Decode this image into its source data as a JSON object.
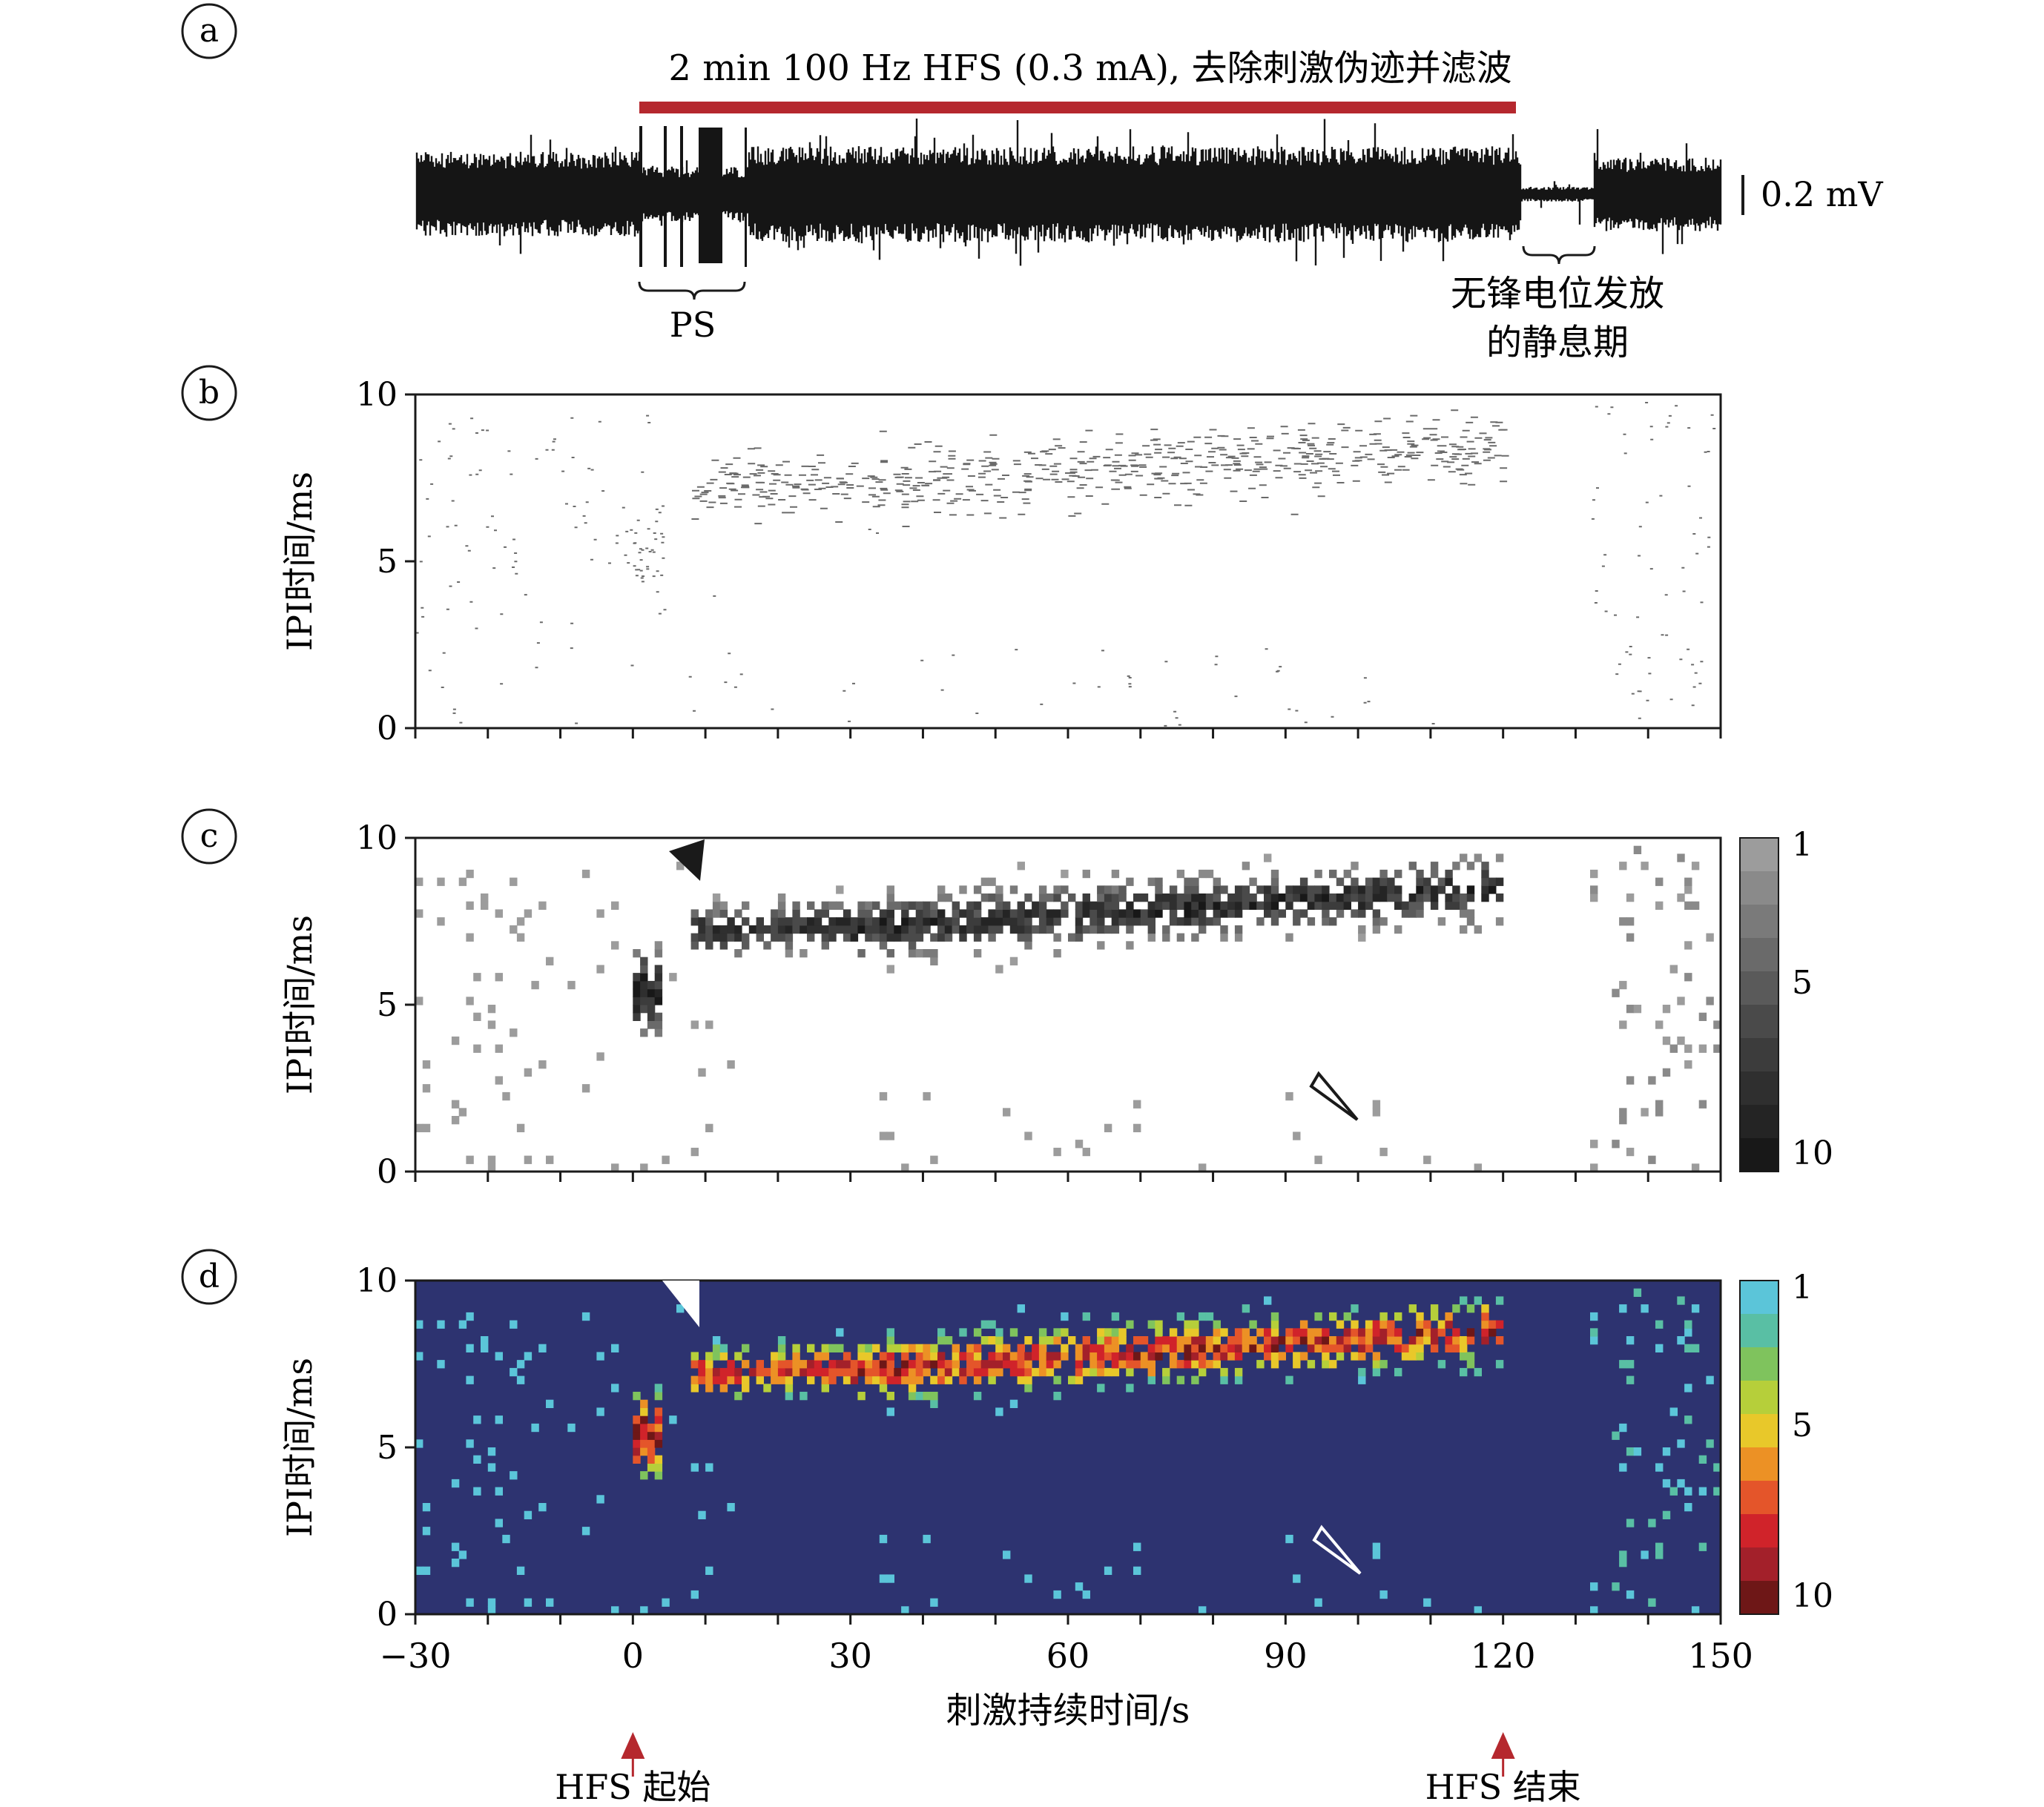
{
  "panel_labels": [
    "a",
    "b",
    "c",
    "d"
  ],
  "colors": {
    "stim_bar": "#b5282e",
    "trace": "#151515",
    "arrow": "#b5282e",
    "heat_bg": "#2d3370",
    "gray_scale": [
      "#9c9c9c",
      "#8a8a8a",
      "#7a7a7a",
      "#6a6a6a",
      "#5a5a5a",
      "#4a4a4a",
      "#3c3c3c",
      "#2f2f2f",
      "#242424",
      "#181818"
    ],
    "color_scale": [
      "#5bc5d9",
      "#59bfa4",
      "#7fc35d",
      "#b6cf3a",
      "#e8c82a",
      "#ec9125",
      "#e4552a",
      "#d0232a",
      "#a3202a",
      "#6e1717"
    ]
  },
  "panel_a": {
    "stim_title": "2 min  100 Hz HFS (0.3 mA), 去除刺激伪迹并滤波",
    "scale_label": "0.2 mV",
    "ps_label": "PS",
    "quiet_label_line1": "无锋电位发放",
    "quiet_label_line2": "的静息期"
  },
  "x_axis": {
    "label": "刺激持续时间/s",
    "range": [
      -30,
      150
    ],
    "ticks": [
      -30,
      0,
      30,
      60,
      90,
      120,
      150
    ],
    "tick_labels": [
      "−30",
      "0",
      "30",
      "60",
      "90",
      "120",
      "150"
    ]
  },
  "events": {
    "start_label": "HFS 起始",
    "end_label": "HFS 结束",
    "start_time": 0,
    "end_time": 120
  },
  "colorbar": {
    "tick_labels": [
      "1",
      "5",
      "10"
    ],
    "ticks": [
      1,
      5,
      10
    ]
  },
  "chart_data": [
    {
      "panel": "b",
      "type": "scatter",
      "ylabel": "IPI时间/ms",
      "xlim": [
        -30,
        150
      ],
      "ylim": [
        0,
        10
      ],
      "yticks": [
        0,
        5,
        10
      ],
      "description_series": "inter-pulse interval raster"
    },
    {
      "panel": "c",
      "type": "heatmap",
      "ylabel": "IPI时间/ms",
      "xlim": [
        -30,
        150
      ],
      "ylim": [
        0,
        10
      ],
      "yticks": [
        0,
        5,
        10
      ],
      "count_range": [
        1,
        10
      ],
      "scale": "gray"
    },
    {
      "panel": "d",
      "type": "heatmap",
      "ylabel": "IPI时间/ms",
      "xlim": [
        -30,
        150
      ],
      "ylim": [
        0,
        10
      ],
      "yticks": [
        0,
        5,
        10
      ],
      "count_range": [
        1,
        10
      ],
      "scale": "color"
    }
  ]
}
